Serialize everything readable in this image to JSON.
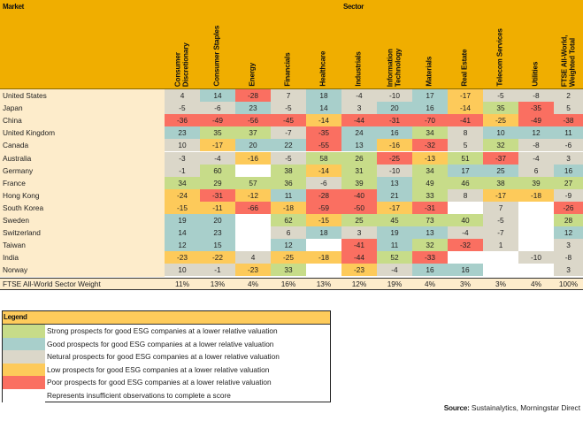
{
  "chart_data": {
    "type": "heatmap",
    "title": "",
    "row_header": "Market",
    "column_group_header": "Sector",
    "columns": [
      "Consumer\nDiscretionary",
      "Consumer Staples",
      "Energy",
      "Financials",
      "Healthcare",
      "Industrials",
      "Information\nTechnology",
      "Materials",
      "Real Estate",
      "Telecom Services",
      "Utilities",
      "FTSE All-World,\nWeighted Total"
    ],
    "rows": [
      {
        "market": "United States",
        "values": [
          "4",
          "14",
          "-28",
          "7",
          "18",
          "-4",
          "-10",
          "17",
          "-17",
          "-5",
          "-8",
          "2"
        ],
        "categories": [
          "N",
          "B",
          "P",
          "N",
          "B",
          "N",
          "N",
          "B",
          "L",
          "N",
          "N",
          "N"
        ]
      },
      {
        "market": "Japan",
        "values": [
          "-5",
          "-6",
          "23",
          "-5",
          "14",
          "3",
          "20",
          "16",
          "-14",
          "35",
          "-35",
          "5"
        ],
        "categories": [
          "N",
          "N",
          "B",
          "N",
          "B",
          "N",
          "B",
          "B",
          "L",
          "G",
          "P",
          "N"
        ]
      },
      {
        "market": "China",
        "values": [
          "-36",
          "-49",
          "-56",
          "-45",
          "-14",
          "-44",
          "-31",
          "-70",
          "-41",
          "-25",
          "-49",
          "-38"
        ],
        "categories": [
          "P",
          "P",
          "P",
          "P",
          "L",
          "P",
          "P",
          "P",
          "P",
          "L",
          "P",
          "P"
        ]
      },
      {
        "market": "United Kingdom",
        "values": [
          "23",
          "35",
          "37",
          "-7",
          "-35",
          "24",
          "16",
          "34",
          "8",
          "10",
          "12",
          "11"
        ],
        "categories": [
          "B",
          "G",
          "G",
          "N",
          "P",
          "B",
          "B",
          "G",
          "N",
          "B",
          "B",
          "B"
        ]
      },
      {
        "market": "Canada",
        "values": [
          "10",
          "-17",
          "20",
          "22",
          "-55",
          "13",
          "-16",
          "-32",
          "5",
          "32",
          "-8",
          "-6"
        ],
        "categories": [
          "N",
          "L",
          "B",
          "B",
          "P",
          "B",
          "L",
          "P",
          "N",
          "G",
          "N",
          "N"
        ]
      },
      {
        "market": "Australia",
        "values": [
          "-3",
          "-4",
          "-16",
          "-5",
          "58",
          "26",
          "-25",
          "-13",
          "51",
          "-37",
          "-4",
          "3"
        ],
        "categories": [
          "N",
          "N",
          "L",
          "N",
          "G",
          "G",
          "P",
          "L",
          "G",
          "P",
          "N",
          "N"
        ]
      },
      {
        "market": "Germany",
        "values": [
          "-1",
          "60",
          "",
          "38",
          "-14",
          "31",
          "-10",
          "34",
          "17",
          "25",
          "6",
          "16"
        ],
        "categories": [
          "N",
          "G",
          "W",
          "G",
          "L",
          "G",
          "N",
          "G",
          "B",
          "B",
          "N",
          "B"
        ]
      },
      {
        "market": "France",
        "values": [
          "34",
          "29",
          "57",
          "36",
          "-6",
          "39",
          "13",
          "49",
          "46",
          "38",
          "39",
          "27"
        ],
        "categories": [
          "G",
          "G",
          "G",
          "G",
          "N",
          "G",
          "B",
          "G",
          "G",
          "G",
          "G",
          "G"
        ]
      },
      {
        "market": "Hong Kong",
        "values": [
          "-24",
          "-31",
          "-12",
          "11",
          "-28",
          "-40",
          "21",
          "33",
          "8",
          "-17",
          "-18",
          "-9"
        ],
        "categories": [
          "L",
          "P",
          "L",
          "B",
          "P",
          "P",
          "B",
          "G",
          "N",
          "L",
          "L",
          "N"
        ]
      },
      {
        "market": "South Korea",
        "values": [
          "-15",
          "-11",
          "-66",
          "-18",
          "-59",
          "-50",
          "-17",
          "-31",
          "",
          "7",
          "",
          "-26"
        ],
        "categories": [
          "L",
          "L",
          "P",
          "L",
          "P",
          "P",
          "L",
          "P",
          "W",
          "N",
          "W",
          "P"
        ]
      },
      {
        "market": "Sweden",
        "values": [
          "19",
          "20",
          "",
          "62",
          "-15",
          "25",
          "45",
          "73",
          "40",
          "-5",
          "",
          "28"
        ],
        "categories": [
          "B",
          "B",
          "W",
          "G",
          "L",
          "G",
          "G",
          "G",
          "G",
          "N",
          "W",
          "G"
        ]
      },
      {
        "market": "Switzerland",
        "values": [
          "14",
          "23",
          "",
          "6",
          "18",
          "3",
          "19",
          "13",
          "-4",
          "-7",
          "",
          "12"
        ],
        "categories": [
          "B",
          "B",
          "W",
          "N",
          "B",
          "N",
          "B",
          "B",
          "N",
          "N",
          "W",
          "B"
        ]
      },
      {
        "market": "Taiwan",
        "values": [
          "12",
          "15",
          "",
          "12",
          "",
          "-41",
          "11",
          "32",
          "-32",
          "1",
          "",
          "3"
        ],
        "categories": [
          "B",
          "B",
          "W",
          "B",
          "W",
          "P",
          "B",
          "G",
          "P",
          "N",
          "W",
          "N"
        ]
      },
      {
        "market": "India",
        "values": [
          "-23",
          "-22",
          "4",
          "-25",
          "-18",
          "-44",
          "52",
          "-33",
          "",
          "",
          "-10",
          "-8"
        ],
        "categories": [
          "L",
          "L",
          "N",
          "L",
          "L",
          "P",
          "G",
          "P",
          "W",
          "W",
          "N",
          "N"
        ]
      },
      {
        "market": "Norway",
        "values": [
          "10",
          "-1",
          "-23",
          "33",
          "",
          "-23",
          "-4",
          "16",
          "16",
          "",
          "",
          "3"
        ],
        "categories": [
          "N",
          "N",
          "L",
          "G",
          "W",
          "L",
          "N",
          "B",
          "B",
          "W",
          "W",
          "N"
        ]
      }
    ],
    "weights_row": {
      "label": "FTSE All-World Sector Weight",
      "values": [
        "11%",
        "13%",
        "4%",
        "16%",
        "13%",
        "12%",
        "19%",
        "4%",
        "3%",
        "3%",
        "4%",
        "100%"
      ]
    },
    "category_colors": {
      "G": "#c7dc89",
      "B": "#a8cfcb",
      "N": "#dbd7c9",
      "L": "#fdca5a",
      "P": "#fa6f61",
      "W": "#ffffff"
    }
  },
  "colors": {
    "header_bg": "#f0ae00",
    "label_bg": "#fdeccb",
    "legend_title_bg": "#fecb5b"
  },
  "legend": {
    "title": "Legend",
    "items": [
      {
        "category": "G",
        "text": "Strong prospects for good ESG companies at a lower relative valuation"
      },
      {
        "category": "B",
        "text": "Good prospects for good ESG companies at a lower relative valuation"
      },
      {
        "category": "N",
        "text": "Netural prospects for good ESG companies at a lower relative valuation"
      },
      {
        "category": "L",
        "text": "Low prospects for good ESG companies at a lower relative valuation"
      },
      {
        "category": "P",
        "text": "Poor prospects for good ESG companies at a lower relative valuation"
      },
      {
        "category": "W",
        "text": "Represents insufficient observations to complete a score"
      }
    ]
  },
  "source": {
    "label": "Source:",
    "text": " Sustainalytics, Morningstar Direct"
  }
}
